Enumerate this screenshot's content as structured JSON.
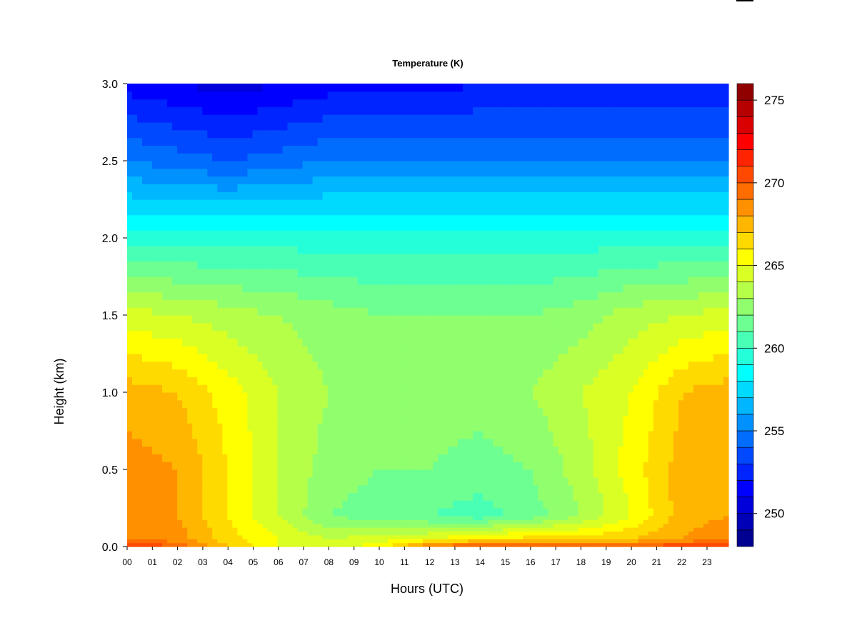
{
  "chart_data": {
    "type": "heatmap",
    "title": "Temperature (K)",
    "xlabel": "Hours (UTC)",
    "ylabel": "Height (km)",
    "x_ticks": [
      "00",
      "01",
      "02",
      "03",
      "04",
      "05",
      "06",
      "07",
      "08",
      "09",
      "10",
      "11",
      "12",
      "13",
      "14",
      "15",
      "16",
      "17",
      "18",
      "19",
      "20",
      "21",
      "22",
      "23"
    ],
    "y_ticks": [
      "0.0",
      "0.5",
      "1.0",
      "1.5",
      "2.0",
      "2.5",
      "3.0"
    ],
    "xlim": [
      0,
      23.85
    ],
    "ylim": [
      0,
      3.0
    ],
    "colorbar": {
      "range": [
        248,
        276
      ],
      "ticks": [
        "250",
        "255",
        "260",
        "265",
        "270",
        "275"
      ],
      "n_levels": 28
    },
    "colormap": [
      "#00007f",
      "#0000ff",
      "#007fff",
      "#00ffff",
      "#7fff7f",
      "#ffff00",
      "#ff7f00",
      "#ff0000",
      "#7f0000"
    ],
    "hours_sampled": [
      0,
      2,
      4,
      6,
      8,
      10,
      12,
      14,
      16,
      18,
      20,
      22,
      23.85
    ],
    "heights_sampled": [
      0.0,
      0.05,
      0.2,
      0.5,
      1.0,
      1.5,
      2.0,
      2.5,
      3.0
    ],
    "temperature_profile": [
      [
        271.5,
        270.0,
        267.0,
        265.0,
        264.5,
        265.5,
        269.5,
        271.0,
        270.0,
        270.5,
        270.5,
        271.0,
        271.5
      ],
      [
        269.0,
        268.5,
        266.5,
        265.0,
        264.0,
        264.5,
        265.0,
        266.0,
        266.5,
        266.5,
        267.0,
        268.0,
        269.0
      ],
      [
        268.5,
        268.0,
        266.0,
        264.0,
        262.0,
        261.5,
        261.0,
        260.5,
        261.5,
        263.0,
        265.0,
        267.5,
        268.0
      ],
      [
        268.5,
        268.0,
        266.0,
        264.0,
        262.5,
        262.0,
        262.0,
        261.5,
        262.0,
        263.5,
        265.5,
        267.5,
        268.0
      ],
      [
        267.5,
        267.0,
        265.5,
        264.0,
        263.0,
        262.5,
        262.5,
        262.5,
        263.0,
        264.0,
        265.0,
        267.0,
        267.5
      ],
      [
        264.5,
        264.0,
        263.5,
        263.0,
        262.5,
        262.0,
        262.0,
        262.0,
        262.0,
        262.5,
        263.5,
        264.0,
        264.5
      ],
      [
        259.5,
        259.5,
        259.5,
        259.5,
        259.5,
        259.5,
        259.5,
        259.5,
        259.5,
        259.5,
        259.5,
        259.5,
        259.5
      ],
      [
        255.0,
        254.5,
        254.0,
        254.5,
        255.0,
        255.0,
        255.0,
        255.0,
        255.0,
        255.0,
        255.0,
        255.0,
        255.0
      ],
      [
        251.5,
        251.0,
        250.5,
        251.0,
        251.5,
        251.5,
        251.5,
        252.0,
        252.0,
        252.0,
        252.0,
        252.0,
        252.0
      ]
    ]
  }
}
